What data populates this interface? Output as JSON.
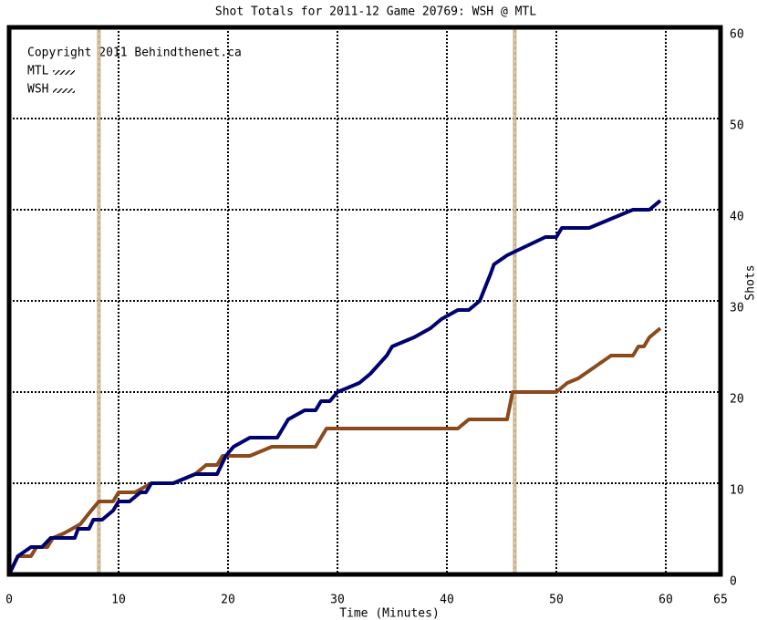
{
  "chart_data": {
    "type": "line",
    "title": "Shot Totals for 2011-12 Game 20769: WSH @ MTL",
    "annotation": "Copyright 2011 Behindthenet.ca",
    "xlabel": "Time (Minutes)",
    "ylabel": "Shots",
    "xlim": [
      0,
      65
    ],
    "ylim": [
      0,
      60
    ],
    "xticks": [
      0,
      10,
      20,
      30,
      40,
      50,
      60,
      65
    ],
    "yticks": [
      0,
      10,
      20,
      30,
      40,
      50,
      60
    ],
    "grid": true,
    "legend": "upper left",
    "markers": {
      "color": "#c8b48c",
      "x": [
        8.2,
        46.2
      ]
    },
    "series": [
      {
        "name": "MTL",
        "color": "#000070",
        "x": [
          0,
          0.8,
          2,
          3,
          3.8,
          6,
          6.3,
          7.3,
          7.7,
          8.5,
          9.5,
          10,
          11,
          12,
          12.5,
          13,
          15,
          17,
          19,
          19.8,
          20.5,
          22,
          24.5,
          25,
          25.5,
          27,
          28,
          28.5,
          29.3,
          30,
          32,
          33,
          34.5,
          35,
          37,
          38.5,
          39.5,
          41,
          42,
          43,
          44,
          44.3,
          45.5,
          49,
          50,
          50.5,
          53,
          57,
          58.5,
          59.5
        ],
        "values": [
          0,
          2,
          3,
          3,
          4,
          4,
          5,
          5,
          6,
          6,
          7,
          8,
          8,
          9,
          9,
          10,
          10,
          11,
          11,
          13,
          14,
          15,
          15,
          16,
          17,
          18,
          18,
          19,
          19,
          20,
          21,
          22,
          24,
          25,
          26,
          27,
          28,
          29,
          29,
          30,
          33,
          34,
          35,
          37,
          37,
          38,
          38,
          40,
          40,
          41
        ]
      },
      {
        "name": "WSH",
        "color": "#8b4a1c",
        "x": [
          0,
          0.8,
          2,
          2.5,
          3.5,
          4,
          5,
          6.5,
          7.5,
          8.2,
          9.5,
          10,
          11.5,
          13,
          15,
          17,
          18,
          19,
          19.5,
          22,
          24,
          28,
          29,
          30,
          41,
          42,
          45.5,
          46,
          50,
          51,
          52,
          55,
          57,
          57.5,
          58,
          58.5,
          59,
          59.5
        ],
        "values": [
          0,
          2,
          2,
          3,
          3,
          4,
          4.5,
          5.5,
          7,
          8,
          8,
          9,
          9,
          10,
          10,
          11,
          12,
          12,
          13,
          13,
          14,
          14,
          16,
          16,
          16,
          17,
          17,
          20,
          20,
          21,
          21.5,
          24,
          24,
          25,
          25,
          26,
          26.5,
          27
        ]
      }
    ]
  }
}
